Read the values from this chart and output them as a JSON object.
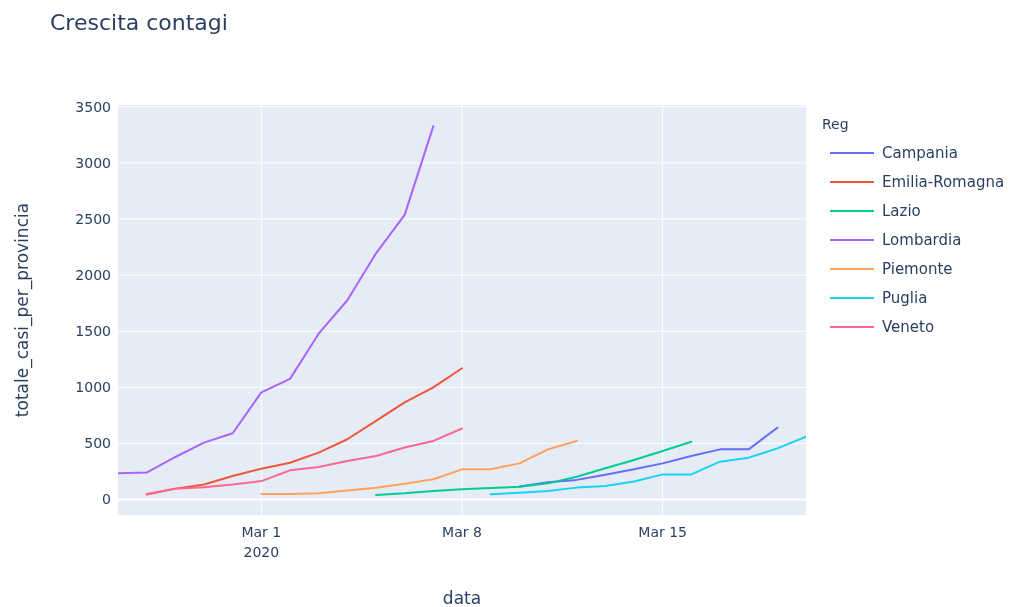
{
  "chart_data": {
    "type": "line",
    "title": "Crescita contagi",
    "xlabel": "data",
    "ylabel": "totale_casi_per_provincia",
    "legend_title": "Reg",
    "legend": "right",
    "grid": true,
    "line_style": "solid",
    "marker": "none",
    "xlim": [
      "2020-02-25",
      "2020-03-20"
    ],
    "xticks": [
      {
        "value": "2020-03-01",
        "label": "Mar 1\n2020"
      },
      {
        "value": "2020-03-08",
        "label": "Mar 8"
      },
      {
        "value": "2020-03-15",
        "label": "Mar 15"
      }
    ],
    "ylim": [
      -138,
      3516
    ],
    "yticks": [
      0,
      500,
      1000,
      1500,
      2000,
      2500,
      3000,
      3500
    ],
    "series": [
      {
        "name": "Campania",
        "color": "#636efa",
        "x": [
          "2020-03-10",
          "2020-03-11",
          "2020-03-12",
          "2020-03-13",
          "2020-03-14",
          "2020-03-15",
          "2020-03-16",
          "2020-03-17",
          "2020-03-18",
          "2020-03-19"
        ],
        "values": [
          117,
          154,
          175,
          220,
          269,
          322,
          387,
          447,
          447,
          640
        ]
      },
      {
        "name": "Emilia-Romagna",
        "color": "#ef553b",
        "x": [
          "2020-02-26",
          "2020-02-27",
          "2020-02-28",
          "2020-02-29",
          "2020-03-01",
          "2020-03-02",
          "2020-03-03",
          "2020-03-04",
          "2020-03-05",
          "2020-03-06",
          "2020-03-07",
          "2020-03-08"
        ],
        "values": [
          45,
          97,
          134,
          209,
          275,
          328,
          418,
          537,
          701,
          866,
          1000,
          1170
        ]
      },
      {
        "name": "Lazio",
        "color": "#00cc96",
        "x": [
          "2020-03-05",
          "2020-03-06",
          "2020-03-07",
          "2020-03-08",
          "2020-03-09",
          "2020-03-10",
          "2020-03-11",
          "2020-03-12",
          "2020-03-13",
          "2020-03-14",
          "2020-03-15",
          "2020-03-16"
        ],
        "values": [
          40,
          55,
          76,
          91,
          102,
          114,
          144,
          203,
          278,
          352,
          432,
          515
        ]
      },
      {
        "name": "Lombardia",
        "color": "#ab63fa",
        "x": [
          "2020-02-25",
          "2020-02-26",
          "2020-02-27",
          "2020-02-28",
          "2020-02-29",
          "2020-03-01",
          "2020-03-02",
          "2020-03-03",
          "2020-03-04",
          "2020-03-05",
          "2020-03-06",
          "2020-03-07"
        ],
        "values": [
          235,
          240,
          379,
          507,
          591,
          955,
          1075,
          1478,
          1776,
          2194,
          2537,
          3328
        ]
      },
      {
        "name": "Piemonte",
        "color": "#ffa15a",
        "x": [
          "2020-03-01",
          "2020-03-02",
          "2020-03-03",
          "2020-03-04",
          "2020-03-05",
          "2020-03-06",
          "2020-03-07",
          "2020-03-08",
          "2020-03-09",
          "2020-03-10",
          "2020-03-11",
          "2020-03-12"
        ],
        "values": [
          50,
          50,
          55,
          80,
          105,
          140,
          180,
          269,
          269,
          322,
          447,
          521
        ]
      },
      {
        "name": "Puglia",
        "color": "#19d3f3",
        "x": [
          "2020-03-09",
          "2020-03-10",
          "2020-03-11",
          "2020-03-12",
          "2020-03-13",
          "2020-03-14",
          "2020-03-15",
          "2020-03-16",
          "2020-03-17",
          "2020-03-18",
          "2020-03-19",
          "2020-03-20"
        ],
        "values": [
          46,
          61,
          76,
          106,
          121,
          160,
          224,
          224,
          337,
          373,
          456,
          560
        ]
      },
      {
        "name": "Veneto",
        "color": "#ff6692",
        "x": [
          "2020-02-26",
          "2020-02-27",
          "2020-02-28",
          "2020-02-29",
          "2020-03-01",
          "2020-03-02",
          "2020-03-03",
          "2020-03-04",
          "2020-03-05",
          "2020-03-06",
          "2020-03-07",
          "2020-03-08"
        ],
        "values": [
          50,
          97,
          110,
          134,
          164,
          260,
          290,
          343,
          388,
          463,
          522,
          633
        ]
      }
    ]
  }
}
